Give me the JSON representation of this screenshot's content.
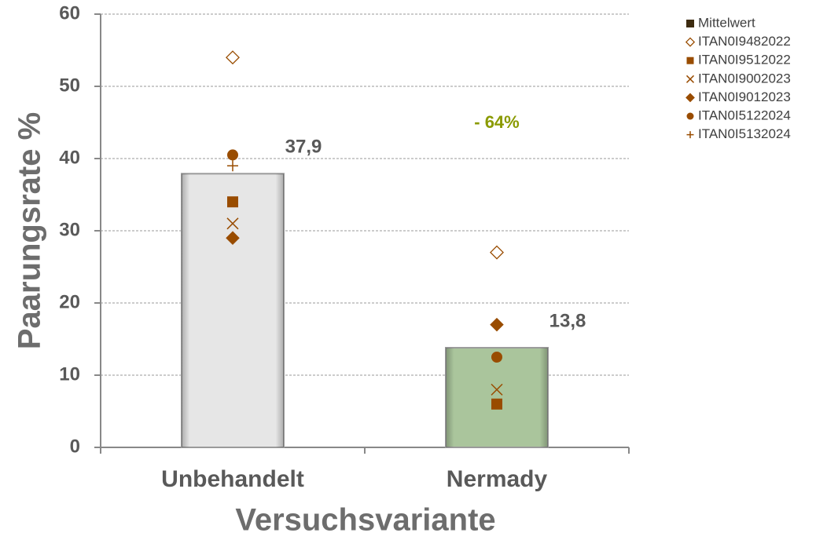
{
  "chart_data": {
    "type": "bar",
    "categories": [
      "Unbehandelt",
      "Nermady"
    ],
    "xlabel": "Versuchsvariante",
    "ylabel": "Paarungsrate %",
    "ylim": [
      0,
      60
    ],
    "yticks": [
      0,
      10,
      20,
      30,
      40,
      50,
      60
    ],
    "grid": true,
    "annotation": "- 64%",
    "annotation_color": "#8a9a00",
    "legend": "right",
    "series": [
      {
        "name": "Mittelwert",
        "type": "bar",
        "colors": [
          "#e6e6e6",
          "#aac59c"
        ],
        "color": "#3d2b10",
        "values": [
          37.9,
          13.8
        ],
        "value_labels": [
          "37,9",
          "13,8"
        ]
      },
      {
        "name": "ITAN0I9482022",
        "type": "scatter",
        "marker": "diamond-open",
        "color": "#994c00",
        "values": [
          54,
          27
        ]
      },
      {
        "name": "ITAN0I9512022",
        "type": "scatter",
        "marker": "square",
        "color": "#994c00",
        "values": [
          34,
          6
        ]
      },
      {
        "name": "ITAN0I9002023",
        "type": "scatter",
        "marker": "x",
        "color": "#994c00",
        "values": [
          31,
          8
        ]
      },
      {
        "name": "ITAN0I9012023",
        "type": "scatter",
        "marker": "diamond",
        "color": "#994c00",
        "values": [
          29,
          17
        ]
      },
      {
        "name": "ITAN0I5122024",
        "type": "scatter",
        "marker": "circle",
        "color": "#994c00",
        "values": [
          40.5,
          12.5
        ]
      },
      {
        "name": "ITAN0I5132024",
        "type": "scatter",
        "marker": "plus",
        "color": "#994c00",
        "values": [
          39,
          null
        ]
      }
    ]
  }
}
